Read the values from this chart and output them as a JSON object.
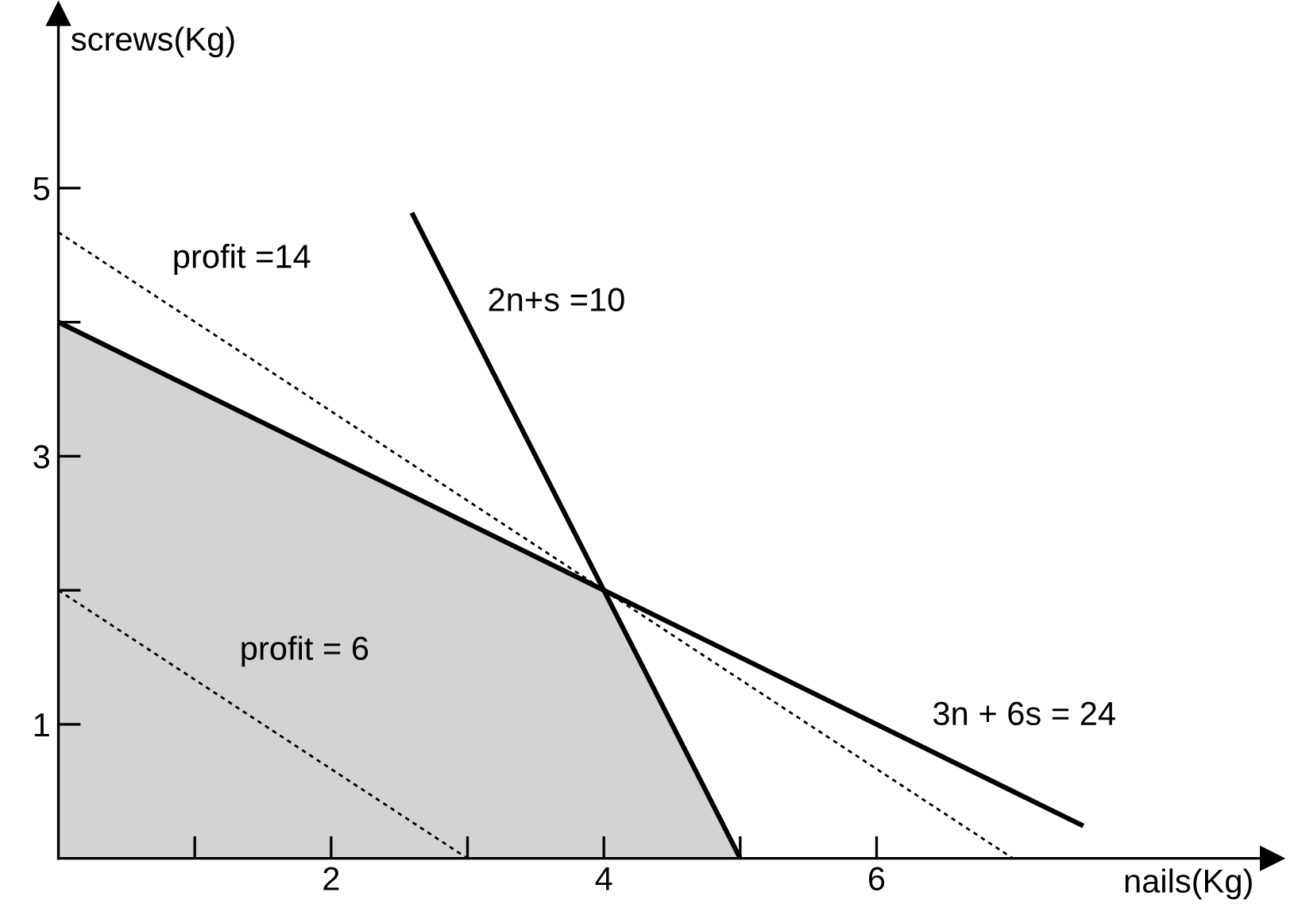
{
  "chart_data": {
    "type": "line",
    "xlabel": "nails(Kg)",
    "ylabel": "screws(Kg)",
    "xlim": [
      0,
      8.9
    ],
    "ylim": [
      0,
      6.3
    ],
    "xticks": [
      {
        "value": 1,
        "label": null
      },
      2,
      {
        "value": 3,
        "label": null
      },
      4,
      {
        "value": 5,
        "label": null
      },
      6
    ],
    "yticks": [
      1,
      {
        "value": 2,
        "label": null
      },
      3,
      {
        "value": 4,
        "label": null
      },
      5
    ],
    "grid": false,
    "legend": false,
    "series": [
      {
        "type": "area",
        "color": "#d3d3d5",
        "x": [
          0,
          0,
          4,
          5
        ],
        "values": [
          0,
          4,
          2,
          0
        ]
      },
      {
        "name": "3n + 6s = 24",
        "color": "#000000",
        "line_style": "solid",
        "x": [
          0,
          7.5
        ],
        "values": [
          4,
          0.25
        ]
      },
      {
        "name": "2n+s =10",
        "color": "#000000",
        "line_style": "solid",
        "x": [
          2.6,
          5
        ],
        "values": [
          4.8,
          0
        ]
      },
      {
        "name": "profit =14",
        "color": "#000000",
        "line_style": "dotted",
        "x": [
          0,
          7
        ],
        "values": [
          4.67,
          0
        ]
      },
      {
        "name": "profit = 6",
        "color": "#000000",
        "line_style": "dotted",
        "x": [
          0,
          3
        ],
        "values": [
          2,
          0
        ]
      }
    ]
  }
}
